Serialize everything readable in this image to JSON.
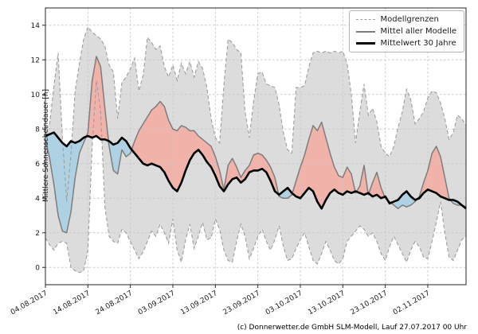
{
  "chart_data": {
    "type": "area",
    "title": "",
    "xlabel": "",
    "ylabel": "Mittlere Sonnenscheindauer [h]",
    "ylim": [
      -1,
      15
    ],
    "y_ticks": [
      0,
      2,
      4,
      6,
      8,
      10,
      12,
      14
    ],
    "grid": "dashed",
    "x_start_date": "04.08.2017",
    "x_step_days": 1,
    "x_tick_days": [
      0,
      10,
      20,
      30,
      40,
      50,
      60,
      70,
      80,
      90
    ],
    "x_tick_labels": [
      "04.08.2017",
      "14.08.2017",
      "24.08.2017",
      "03.09.2017",
      "13.09.2017",
      "23.09.2017",
      "03.10.2017",
      "13.10.2017",
      "23.10.2017",
      "02.11.2017"
    ],
    "legend": {
      "position": "upper right",
      "entries": [
        {
          "label": "Modellgrenzen",
          "swatch": "dashed-gray-line"
        },
        {
          "label": "Mittel aller Modelle",
          "swatch": "solid-gray-line"
        },
        {
          "label": "Mittelwert 30 Jahre",
          "swatch": "thick-black-line"
        }
      ]
    },
    "series": [
      {
        "name": "Modellgrenzen oben",
        "values": [
          8.0,
          8.3,
          10.5,
          12.4,
          7.5,
          3.8,
          6.5,
          10.2,
          11.8,
          13.2,
          13.9,
          13.6,
          13.4,
          13.2,
          12.8,
          11.7,
          11.3,
          8.6,
          10.7,
          11.0,
          11.5,
          12.1,
          10.2,
          11.1,
          13.3,
          13.0,
          12.6,
          12.8,
          11.6,
          11.0,
          11.7,
          10.8,
          11.8,
          11.2,
          11.9,
          11.0,
          11.9,
          11.5,
          10.4,
          8.6,
          7.5,
          7.2,
          10.5,
          13.2,
          13.0,
          12.6,
          12.4,
          9.0,
          7.5,
          9.6,
          11.2,
          11.3,
          10.6,
          10.5,
          10.4,
          9.4,
          7.8,
          6.8,
          6.6,
          10.4,
          10.4,
          10.5,
          11.6,
          12.4,
          12.5,
          12.4,
          12.5,
          12.4,
          12.5,
          12.4,
          12.5,
          11.8,
          10.0,
          7.2,
          9.0,
          10.6,
          8.8,
          9.2,
          8.4,
          7.0,
          6.6,
          6.4,
          7.0,
          8.1,
          9.0,
          10.3,
          9.7,
          8.3,
          8.6,
          9.0,
          9.8,
          10.2,
          10.1,
          9.5,
          8.6,
          7.4,
          7.8,
          8.8,
          8.6,
          8.2
        ]
      },
      {
        "name": "Modellgrenzen unten",
        "values": [
          1.7,
          1.3,
          1.0,
          1.4,
          1.5,
          1.4,
          0.0,
          -0.2,
          -0.3,
          -0.2,
          1.0,
          7.0,
          10.8,
          9.0,
          3.5,
          1.8,
          1.5,
          1.4,
          2.2,
          2.0,
          1.5,
          1.0,
          0.5,
          0.9,
          1.5,
          2.1,
          1.8,
          2.5,
          2.0,
          1.4,
          2.8,
          1.0,
          0.3,
          1.6,
          2.5,
          1.1,
          1.8,
          2.6,
          1.6,
          1.7,
          2.8,
          2.2,
          1.0,
          0.4,
          0.3,
          1.5,
          2.5,
          1.8,
          0.5,
          1.1,
          1.8,
          2.2,
          1.5,
          1.0,
          1.6,
          2.4,
          1.2,
          0.4,
          0.5,
          1.1,
          1.6,
          2.0,
          1.2,
          0.4,
          0.2,
          0.8,
          1.5,
          1.0,
          0.4,
          0.2,
          0.5,
          1.5,
          1.8,
          2.1,
          2.4,
          2.2,
          1.8,
          2.0,
          1.5,
          0.8,
          0.4,
          1.2,
          1.8,
          1.3,
          0.8,
          0.3,
          1.0,
          1.5,
          1.2,
          0.6,
          0.5,
          1.5,
          2.6,
          3.8,
          2.0,
          0.6,
          0.4,
          1.0,
          1.6,
          1.8
        ]
      },
      {
        "name": "Mittel aller Modelle",
        "values": [
          7.4,
          6.3,
          4.8,
          3.0,
          2.1,
          2.0,
          3.2,
          5.2,
          6.6,
          7.2,
          7.8,
          10.8,
          12.2,
          11.6,
          9.2,
          7.0,
          5.6,
          5.4,
          6.8,
          6.4,
          6.6,
          7.3,
          7.9,
          8.3,
          8.7,
          9.1,
          9.3,
          9.6,
          9.3,
          8.5,
          8.0,
          7.9,
          8.2,
          8.1,
          7.9,
          7.9,
          7.6,
          7.4,
          7.2,
          7.0,
          6.4,
          5.6,
          4.5,
          5.9,
          6.3,
          5.8,
          5.2,
          5.6,
          5.9,
          6.5,
          6.6,
          6.5,
          6.2,
          5.8,
          5.2,
          4.1,
          4.0,
          4.0,
          4.2,
          5.0,
          5.8,
          6.5,
          7.4,
          8.2,
          7.9,
          8.4,
          7.5,
          6.6,
          5.8,
          5.3,
          5.2,
          5.8,
          5.4,
          4.3,
          4.7,
          5.9,
          4.2,
          4.9,
          5.5,
          4.6,
          4.0,
          3.8,
          3.6,
          3.4,
          3.6,
          3.5,
          3.6,
          3.8,
          4.1,
          4.9,
          5.6,
          6.6,
          7.0,
          6.4,
          5.2,
          4.0,
          3.7,
          3.6,
          3.6,
          3.5
        ]
      },
      {
        "name": "Mittelwert 30 Jahre",
        "values": [
          7.6,
          7.7,
          7.8,
          7.5,
          7.2,
          7.0,
          7.3,
          7.2,
          7.3,
          7.5,
          7.6,
          7.5,
          7.6,
          7.4,
          7.4,
          7.3,
          7.1,
          7.2,
          7.5,
          7.3,
          6.9,
          6.6,
          6.3,
          6.0,
          5.9,
          6.0,
          5.9,
          5.8,
          5.5,
          5.0,
          4.6,
          4.4,
          4.9,
          5.6,
          6.2,
          6.6,
          6.8,
          6.5,
          6.1,
          5.8,
          5.3,
          4.7,
          4.4,
          4.8,
          5.1,
          5.2,
          4.9,
          5.1,
          5.5,
          5.6,
          5.6,
          5.7,
          5.5,
          5.0,
          4.4,
          4.2,
          4.4,
          4.6,
          4.3,
          4.1,
          4.0,
          4.3,
          4.6,
          4.4,
          3.8,
          3.4,
          3.9,
          4.3,
          4.5,
          4.3,
          4.2,
          4.4,
          4.3,
          4.4,
          4.3,
          4.2,
          4.3,
          4.1,
          4.2,
          4.0,
          4.1,
          3.7,
          3.8,
          3.9,
          4.2,
          4.4,
          4.1,
          3.9,
          4.0,
          4.3,
          4.5,
          4.4,
          4.3,
          4.1,
          4.0,
          3.9,
          3.9,
          3.8,
          3.6,
          3.4
        ]
      }
    ],
    "colors": {
      "band_fill": "#dcdcdc",
      "band_edge": "#9e9e9e",
      "model_mean_line": "#7d7d7d",
      "mean30_line": "#000000",
      "above_fill": "#f0b2a9",
      "below_fill": "#aed2e3",
      "grid": "#c9c9c9",
      "spine": "#262626"
    }
  },
  "footer": {
    "credit": "(c) Donnerwetter.de GmbH SLM-Modell, Lauf 27.07.2017 00 Uhr"
  }
}
